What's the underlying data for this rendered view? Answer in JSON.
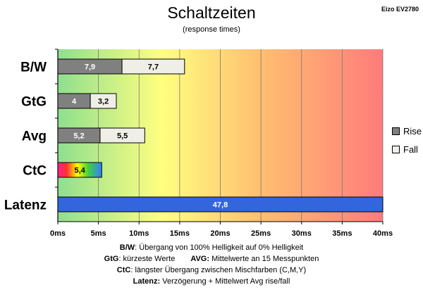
{
  "header": {
    "title": "Schaltzeiten",
    "subtitle": "(response times)",
    "model": "Eizo EV2780"
  },
  "chart_data": {
    "type": "bar",
    "orientation": "horizontal",
    "stacked": true,
    "categories": [
      "B/W",
      "GtG",
      "Avg",
      "CtC",
      "Latenz"
    ],
    "series": [
      {
        "name": "Rise",
        "values": [
          7.9,
          4.0,
          5.2,
          null,
          null
        ],
        "labels": [
          "7,9",
          "4",
          "5,2",
          "",
          ""
        ],
        "color": "#808080"
      },
      {
        "name": "Fall",
        "values": [
          7.7,
          3.2,
          5.5,
          null,
          null
        ],
        "labels": [
          "7,7",
          "3,2",
          "5,5",
          "",
          ""
        ],
        "color": "#efefe7"
      }
    ],
    "ctc": {
      "value": 5.4,
      "label": "5,4"
    },
    "latenz": {
      "value": 47.8,
      "label": "47,8",
      "color": "#3366dd"
    },
    "xlim": [
      0,
      40
    ],
    "xticks": [
      "0ms",
      "5ms",
      "10ms",
      "15ms",
      "20ms",
      "25ms",
      "30ms",
      "35ms",
      "40ms"
    ],
    "grid": true,
    "background": "gradient green-yellow-red",
    "legend": {
      "position": "right",
      "items": [
        {
          "name": "Rise",
          "color": "#808080"
        },
        {
          "name": "Fall",
          "color": "#efefe7"
        }
      ]
    }
  },
  "notes": {
    "bw_key": "B/W",
    "bw_text": ":  Übergang von 100% Helligkeit auf 0% Helligkeit",
    "gtg_key": "GtG",
    "gtg_text": ": kürzeste  Werte",
    "avg_key": "AVG:",
    "avg_text": " Mittelwerte  an 15 Messpunkten",
    "ctc_key": "CtC",
    "ctc_text": ": längster Übergang  zwischen Mischfarben (C,M,Y)",
    "latenz_key": "Latenz:",
    "latenz_text": " Verzögerung  + Mittelwert Avg rise/fall"
  }
}
